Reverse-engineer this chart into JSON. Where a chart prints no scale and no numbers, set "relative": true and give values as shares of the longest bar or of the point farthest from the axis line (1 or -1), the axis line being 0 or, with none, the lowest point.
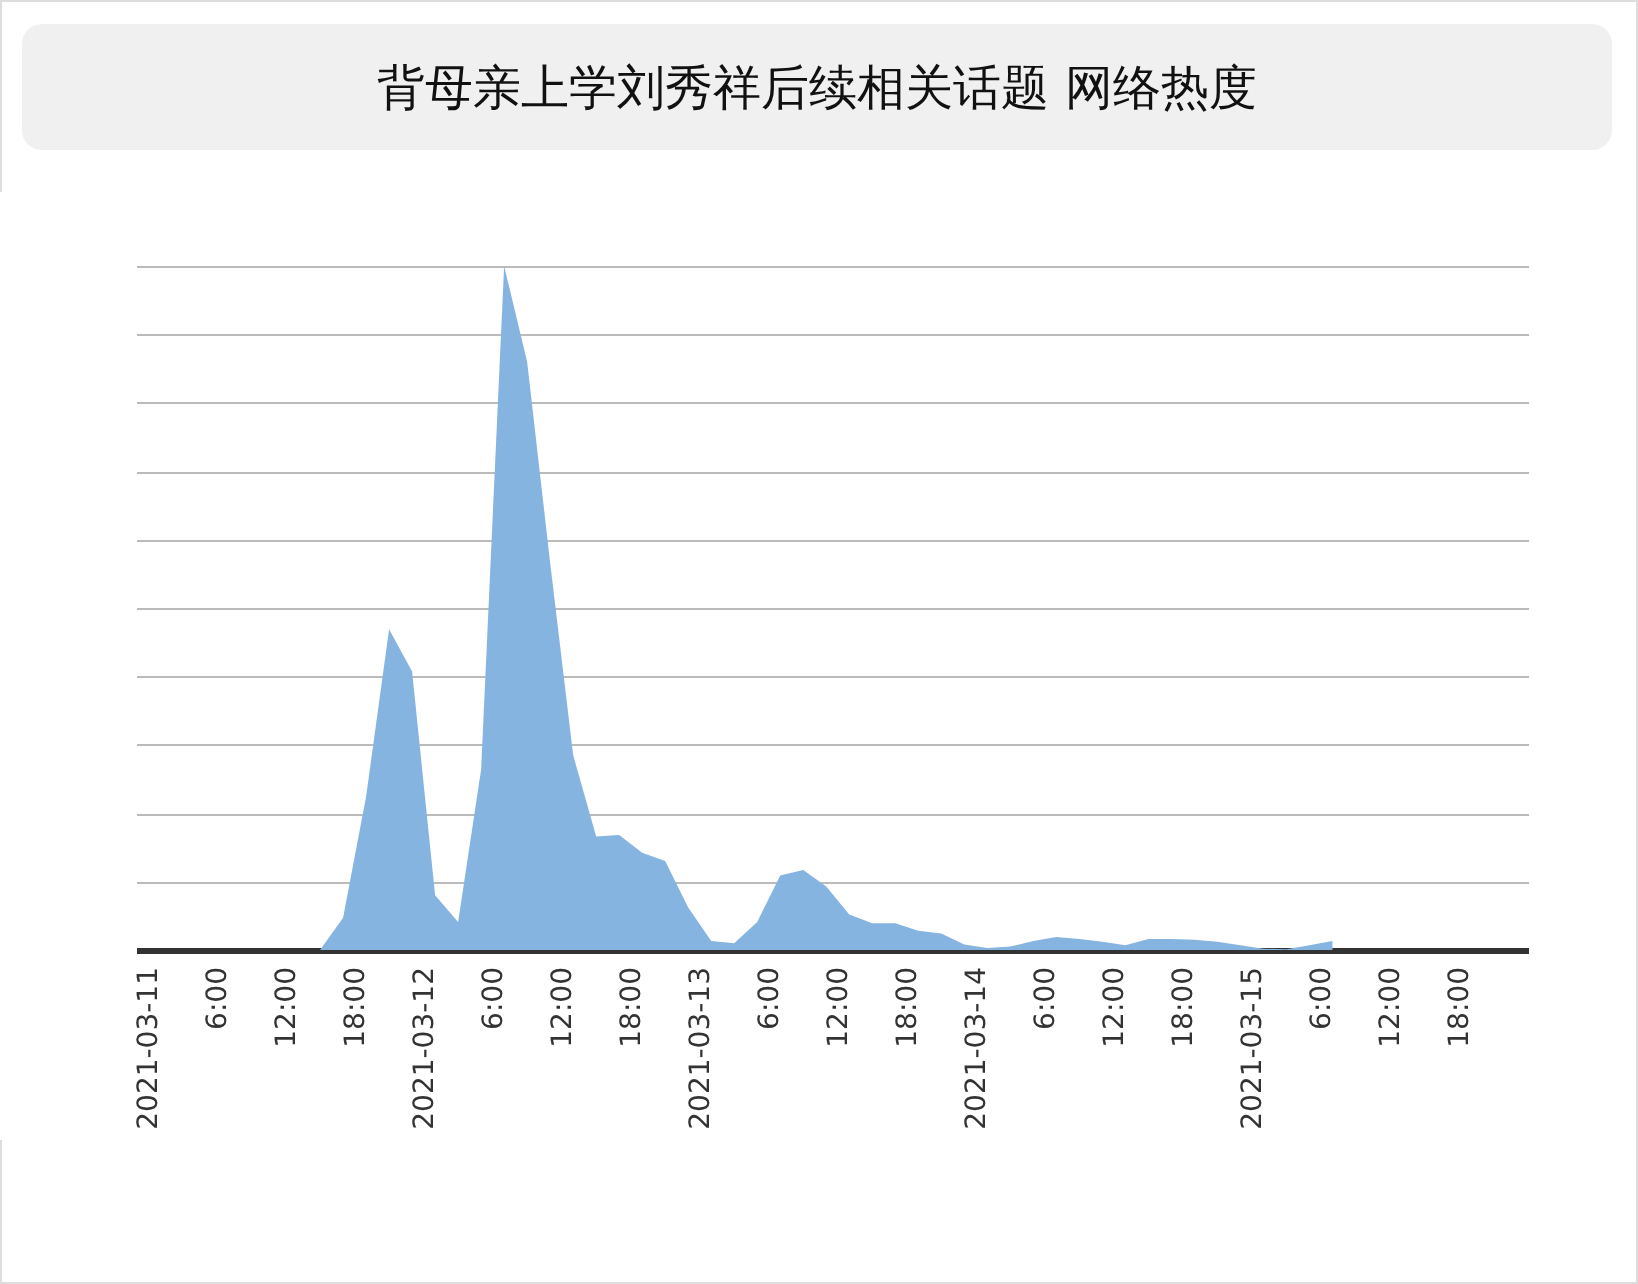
{
  "chart_data": {
    "type": "area",
    "title": "背母亲上学刘秀祥后续相关话题 网络热度",
    "relative": true,
    "grid": "y",
    "x": [
      "2021-03-11T15:00",
      "2021-03-11T17:00",
      "2021-03-11T19:00",
      "2021-03-11T21:00",
      "2021-03-11T23:00",
      "2021-03-12T01:00",
      "2021-03-12T03:00",
      "2021-03-12T05:00",
      "2021-03-12T07:00",
      "2021-03-12T09:00",
      "2021-03-12T11:00",
      "2021-03-12T13:00",
      "2021-03-12T15:00",
      "2021-03-12T17:00",
      "2021-03-12T19:00",
      "2021-03-12T21:00",
      "2021-03-12T23:00",
      "2021-03-13T01:00",
      "2021-03-13T03:00",
      "2021-03-13T05:00",
      "2021-03-13T07:00",
      "2021-03-13T09:00",
      "2021-03-13T11:00",
      "2021-03-13T13:00",
      "2021-03-13T15:00",
      "2021-03-13T17:00",
      "2021-03-13T19:00",
      "2021-03-13T21:00",
      "2021-03-13T23:00",
      "2021-03-14T01:00",
      "2021-03-14T03:00",
      "2021-03-14T05:00",
      "2021-03-14T07:00",
      "2021-03-14T09:00",
      "2021-03-14T11:00",
      "2021-03-14T13:00",
      "2021-03-14T15:00",
      "2021-03-14T17:00",
      "2021-03-14T19:00",
      "2021-03-14T21:00",
      "2021-03-14T23:00",
      "2021-03-15T01:00",
      "2021-03-15T03:00",
      "2021-03-15T05:00",
      "2021-03-15T07:00"
    ],
    "series": [
      {
        "color": "#86b4e0",
        "values": [
          0,
          0.047,
          0.224,
          0.469,
          0.407,
          0.08,
          0.041,
          0.264,
          1.0,
          0.86,
          0.566,
          0.285,
          0.166,
          0.168,
          0.142,
          0.13,
          0.062,
          0.013,
          0.01,
          0.041,
          0.109,
          0.117,
          0.093,
          0.052,
          0.039,
          0.039,
          0.028,
          0.024,
          0.008,
          0.003,
          0.005,
          0.013,
          0.019,
          0.016,
          0.012,
          0.007,
          0.016,
          0.016,
          0.015,
          0.012,
          0.007,
          0.002,
          0.001,
          0.007,
          0.013
        ]
      }
    ],
    "xlim": [
      "2021-03-10T23:00",
      "2021-03-16T00:00"
    ],
    "xticks": [
      {
        "value": "2021-03-11T00:00",
        "label": "2021-03-11"
      },
      {
        "value": "2021-03-11T06:00",
        "label": "6:00"
      },
      {
        "value": "2021-03-11T12:00",
        "label": "12:00"
      },
      {
        "value": "2021-03-11T18:00",
        "label": "18:00"
      },
      {
        "value": "2021-03-12T00:00",
        "label": "2021-03-12"
      },
      {
        "value": "2021-03-12T06:00",
        "label": "6:00"
      },
      {
        "value": "2021-03-12T12:00",
        "label": "12:00"
      },
      {
        "value": "2021-03-12T18:00",
        "label": "18:00"
      },
      {
        "value": "2021-03-13T00:00",
        "label": "2021-03-13"
      },
      {
        "value": "2021-03-13T06:00",
        "label": "6:00"
      },
      {
        "value": "2021-03-13T12:00",
        "label": "12:00"
      },
      {
        "value": "2021-03-13T18:00",
        "label": "18:00"
      },
      {
        "value": "2021-03-14T00:00",
        "label": "2021-03-14"
      },
      {
        "value": "2021-03-14T06:00",
        "label": "6:00"
      },
      {
        "value": "2021-03-14T12:00",
        "label": "12:00"
      },
      {
        "value": "2021-03-14T18:00",
        "label": "18:00"
      },
      {
        "value": "2021-03-15T00:00",
        "label": "2021-03-15"
      },
      {
        "value": "2021-03-15T06:00",
        "label": "6:00"
      },
      {
        "value": "2021-03-15T12:00",
        "label": "12:00"
      },
      {
        "value": "2021-03-15T18:00",
        "label": "18:00"
      }
    ]
  }
}
